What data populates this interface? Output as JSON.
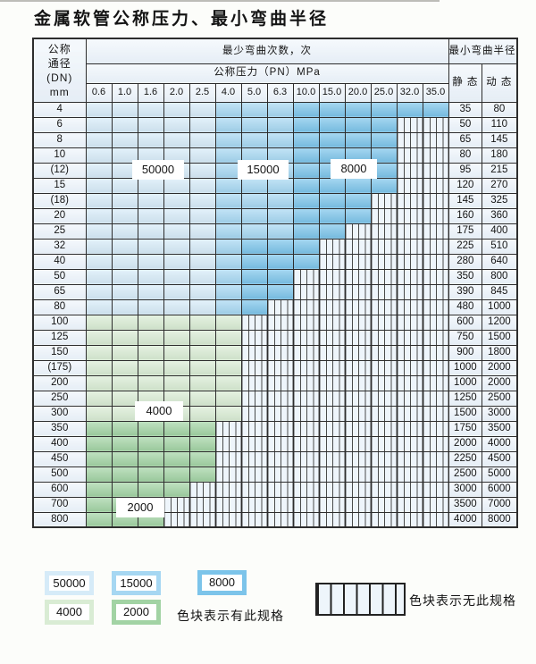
{
  "page": {
    "title": "金属软管公称压力、最小弯曲半径"
  },
  "table": {
    "corner": {
      "line1": "公称",
      "line2": "通径",
      "line3": "(DN)",
      "line4": "mm"
    },
    "headers": {
      "bend_cycles": "最少弯曲次数，次",
      "pressure": "公称压力（PN）MPa",
      "min_bend_radius": "最小弯曲半径",
      "static": "静 态",
      "dynamic": "动 态"
    },
    "pressure_columns": [
      "0.6",
      "1.0",
      "1.6",
      "2.0",
      "2.5",
      "4.0",
      "5.0",
      "6.3",
      "10.0",
      "15.0",
      "20.0",
      "25.0",
      "32.0",
      "35.0"
    ],
    "rows": [
      {
        "dn": "4",
        "static": "35",
        "dynamic": "80",
        "bands": [
          [
            "s1",
            5
          ],
          [
            "s2",
            3
          ],
          [
            "s3",
            6
          ]
        ]
      },
      {
        "dn": "6",
        "static": "50",
        "dynamic": "110",
        "bands": [
          [
            "s1",
            5
          ],
          [
            "s2",
            3
          ],
          [
            "s3",
            4
          ]
        ]
      },
      {
        "dn": "8",
        "static": "65",
        "dynamic": "145",
        "bands": [
          [
            "s1",
            5
          ],
          [
            "s2",
            3
          ],
          [
            "s3",
            4
          ]
        ]
      },
      {
        "dn": "10",
        "static": "80",
        "dynamic": "180",
        "bands": [
          [
            "s1",
            5
          ],
          [
            "s2",
            3
          ],
          [
            "s3",
            4
          ]
        ]
      },
      {
        "dn": "(12)",
        "static": "95",
        "dynamic": "215",
        "bands": [
          [
            "s1",
            5
          ],
          [
            "s2",
            3
          ],
          [
            "s3",
            4
          ]
        ]
      },
      {
        "dn": "15",
        "static": "120",
        "dynamic": "270",
        "bands": [
          [
            "s1",
            5
          ],
          [
            "s2",
            3
          ],
          [
            "s3",
            4
          ]
        ]
      },
      {
        "dn": "(18)",
        "static": "145",
        "dynamic": "325",
        "bands": [
          [
            "s1",
            5
          ],
          [
            "s2",
            3
          ],
          [
            "s3",
            3
          ]
        ]
      },
      {
        "dn": "20",
        "static": "160",
        "dynamic": "360",
        "bands": [
          [
            "s1",
            5
          ],
          [
            "s2",
            3
          ],
          [
            "s3",
            3
          ]
        ]
      },
      {
        "dn": "25",
        "static": "175",
        "dynamic": "400",
        "bands": [
          [
            "s1",
            5
          ],
          [
            "s2",
            3
          ],
          [
            "s3",
            2
          ]
        ]
      },
      {
        "dn": "32",
        "static": "225",
        "dynamic": "510",
        "bands": [
          [
            "s1",
            5
          ],
          [
            "s2",
            1
          ],
          [
            "s3",
            3
          ]
        ]
      },
      {
        "dn": "40",
        "static": "280",
        "dynamic": "640",
        "bands": [
          [
            "s1",
            5
          ],
          [
            "s2",
            1
          ],
          [
            "s3",
            3
          ]
        ]
      },
      {
        "dn": "50",
        "static": "350",
        "dynamic": "800",
        "bands": [
          [
            "s1",
            5
          ],
          [
            "s2",
            1
          ],
          [
            "s3",
            2
          ]
        ]
      },
      {
        "dn": "65",
        "static": "390",
        "dynamic": "845",
        "bands": [
          [
            "s1",
            5
          ],
          [
            "s2",
            1
          ],
          [
            "s3",
            2
          ]
        ]
      },
      {
        "dn": "80",
        "static": "480",
        "dynamic": "1000",
        "bands": [
          [
            "s1",
            5
          ],
          [
            "s2",
            1
          ],
          [
            "s3",
            1
          ]
        ]
      },
      {
        "dn": "100",
        "static": "600",
        "dynamic": "1200",
        "bands": [
          [
            "g1",
            6
          ]
        ]
      },
      {
        "dn": "125",
        "static": "750",
        "dynamic": "1500",
        "bands": [
          [
            "g1",
            6
          ]
        ]
      },
      {
        "dn": "150",
        "static": "900",
        "dynamic": "1800",
        "bands": [
          [
            "g1",
            6
          ]
        ]
      },
      {
        "dn": "(175)",
        "static": "1000",
        "dynamic": "2000",
        "bands": [
          [
            "g1",
            6
          ]
        ]
      },
      {
        "dn": "200",
        "static": "1000",
        "dynamic": "2000",
        "bands": [
          [
            "g1",
            6
          ]
        ]
      },
      {
        "dn": "250",
        "static": "1250",
        "dynamic": "2500",
        "bands": [
          [
            "g1",
            6
          ]
        ]
      },
      {
        "dn": "300",
        "static": "1500",
        "dynamic": "3000",
        "bands": [
          [
            "g1",
            6
          ]
        ]
      },
      {
        "dn": "350",
        "static": "1750",
        "dynamic": "3500",
        "bands": [
          [
            "g2",
            5
          ]
        ]
      },
      {
        "dn": "400",
        "static": "2000",
        "dynamic": "4000",
        "bands": [
          [
            "g2",
            5
          ]
        ]
      },
      {
        "dn": "450",
        "static": "2250",
        "dynamic": "4500",
        "bands": [
          [
            "g2",
            5
          ]
        ]
      },
      {
        "dn": "500",
        "static": "2500",
        "dynamic": "5000",
        "bands": [
          [
            "g2",
            5
          ]
        ]
      },
      {
        "dn": "600",
        "static": "3000",
        "dynamic": "6000",
        "bands": [
          [
            "g2",
            4
          ]
        ]
      },
      {
        "dn": "700",
        "static": "3500",
        "dynamic": "7000",
        "bands": [
          [
            "g2",
            3
          ]
        ]
      },
      {
        "dn": "800",
        "static": "4000",
        "dynamic": "8000",
        "bands": [
          [
            "g2",
            3
          ]
        ]
      }
    ]
  },
  "overlays": [
    {
      "text": "50000"
    },
    {
      "text": "15000"
    },
    {
      "text": "8000"
    },
    {
      "text": "4000"
    },
    {
      "text": "2000"
    }
  ],
  "legend": {
    "swatches": [
      {
        "value": "50000",
        "band": "s1"
      },
      {
        "value": "15000",
        "band": "s2"
      },
      {
        "value": "8000",
        "band": "s3"
      },
      {
        "value": "4000",
        "band": "g1"
      },
      {
        "value": "2000",
        "band": "g2"
      }
    ],
    "spec_note": "色块表示有此规格",
    "no_spec_note": "色块表示无此规格"
  },
  "colors": {
    "s1": "#d6ebf8",
    "s2": "#a6d7f2",
    "s3": "#7cc4ea",
    "g1": "#d9ecd4",
    "g2": "#a2d3a4",
    "hatch": "#eef5fb",
    "panel": "#eaf2fa",
    "grid": "#2d2d2d",
    "text": "#141414",
    "page": "#fcfdfa"
  }
}
